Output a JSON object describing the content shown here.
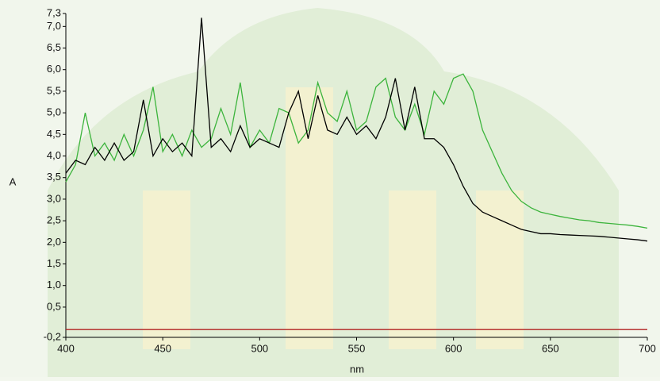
{
  "chart_data": {
    "type": "line",
    "x_label": "nm",
    "y_label": "A",
    "x": [
      400,
      405,
      410,
      415,
      420,
      425,
      430,
      435,
      440,
      445,
      450,
      455,
      460,
      465,
      470,
      475,
      480,
      485,
      490,
      495,
      500,
      505,
      510,
      515,
      520,
      525,
      530,
      535,
      540,
      545,
      550,
      555,
      560,
      565,
      570,
      575,
      580,
      585,
      590,
      595,
      600,
      605,
      610,
      615,
      620,
      625,
      630,
      635,
      640,
      645,
      650,
      655,
      660,
      665,
      670,
      675,
      680,
      685,
      690,
      695,
      700
    ],
    "series": [
      {
        "color": "#3cb43c",
        "values": [
          3.4,
          3.8,
          5.0,
          4.0,
          4.3,
          3.9,
          4.5,
          4.0,
          4.6,
          5.6,
          4.1,
          4.5,
          4.0,
          4.6,
          4.2,
          4.4,
          5.1,
          4.5,
          5.7,
          4.2,
          4.6,
          4.3,
          5.1,
          5.0,
          4.3,
          4.6,
          5.7,
          5.0,
          4.8,
          5.5,
          4.6,
          4.8,
          5.6,
          5.8,
          4.9,
          4.6,
          5.2,
          4.5,
          5.5,
          5.2,
          5.8,
          5.9,
          5.5,
          4.6,
          4.1,
          3.6,
          3.2,
          2.95,
          2.8,
          2.7,
          2.65,
          2.6,
          2.56,
          2.52,
          2.5,
          2.46,
          2.44,
          2.42,
          2.4,
          2.37,
          2.33
        ]
      },
      {
        "color": "#000000",
        "values": [
          3.6,
          3.9,
          3.8,
          4.2,
          3.9,
          4.3,
          3.9,
          4.1,
          5.3,
          4.0,
          4.4,
          4.1,
          4.3,
          4.0,
          7.2,
          4.2,
          4.4,
          4.1,
          4.7,
          4.2,
          4.4,
          4.3,
          4.2,
          5.0,
          5.5,
          4.4,
          5.4,
          4.6,
          4.5,
          4.9,
          4.5,
          4.7,
          4.4,
          4.9,
          5.8,
          4.6,
          5.6,
          4.4,
          4.4,
          4.2,
          3.8,
          3.3,
          2.9,
          2.7,
          2.6,
          2.5,
          2.4,
          2.3,
          2.25,
          2.2,
          2.2,
          2.18,
          2.17,
          2.16,
          2.15,
          2.14,
          2.12,
          2.1,
          2.08,
          2.06,
          2.03
        ]
      },
      {
        "color": "#b22222",
        "values": [
          -0.02,
          -0.02,
          -0.02,
          -0.02,
          -0.02,
          -0.02,
          -0.02,
          -0.02,
          -0.02,
          -0.02,
          -0.02,
          -0.02,
          -0.02,
          -0.02,
          -0.02,
          -0.02,
          -0.02,
          -0.02,
          -0.02,
          -0.02,
          -0.02,
          -0.02,
          -0.02,
          -0.02,
          -0.02,
          -0.02,
          -0.02,
          -0.02,
          -0.02,
          -0.02,
          -0.02,
          -0.02,
          -0.02,
          -0.02,
          -0.02,
          -0.02,
          -0.02,
          -0.02,
          -0.02,
          -0.02,
          -0.02,
          -0.02,
          -0.02,
          -0.02,
          -0.02,
          -0.02,
          -0.02,
          -0.02,
          -0.02,
          -0.02,
          -0.02,
          -0.02,
          -0.02,
          -0.02,
          -0.02,
          -0.02,
          -0.02,
          -0.02,
          -0.02,
          -0.02,
          -0.02
        ]
      }
    ],
    "xlim": [
      400,
      700
    ],
    "xticks": [
      400,
      450,
      500,
      550,
      600,
      650,
      700
    ],
    "ylim": [
      -0.2,
      7.3
    ],
    "yticks": [
      {
        "value": -0.2,
        "label": "-0,2"
      },
      {
        "value": 0.5,
        "label": "0,5"
      },
      {
        "value": 1.0,
        "label": "1,0"
      },
      {
        "value": 1.5,
        "label": "1,5"
      },
      {
        "value": 2.0,
        "label": "2,0"
      },
      {
        "value": 2.5,
        "label": "2,5"
      },
      {
        "value": 3.0,
        "label": "3,0"
      },
      {
        "value": 3.5,
        "label": "3,5"
      },
      {
        "value": 4.0,
        "label": "4,0"
      },
      {
        "value": 4.5,
        "label": "4,5"
      },
      {
        "value": 5.0,
        "label": "5,0"
      },
      {
        "value": 5.5,
        "label": "5,5"
      },
      {
        "value": 6.0,
        "label": "6,0"
      },
      {
        "value": 6.5,
        "label": "6,5"
      },
      {
        "value": 7.0,
        "label": "7,0"
      },
      {
        "value": 7.3,
        "label": "7,3"
      }
    ]
  }
}
